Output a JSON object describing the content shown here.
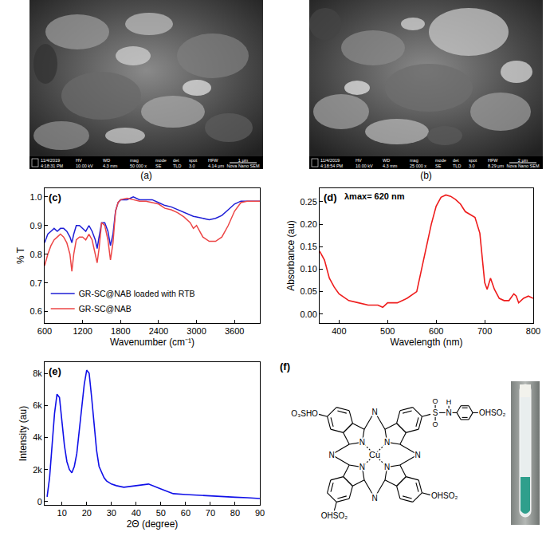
{
  "chart_data": [
    {
      "type": "line",
      "label": "(c)",
      "x_title": "Wavenumber (cm⁻¹)",
      "y_title": "% T",
      "x": [
        600,
        650,
        700,
        750,
        800,
        850,
        900,
        950,
        1000,
        1030,
        1060,
        1100,
        1150,
        1200,
        1250,
        1300,
        1350,
        1400,
        1430,
        1460,
        1500,
        1550,
        1600,
        1640,
        1680,
        1720,
        1760,
        1800,
        1900,
        2000,
        2100,
        2200,
        2300,
        2400,
        2500,
        2600,
        2700,
        2800,
        2900,
        2950,
        3000,
        3050,
        3100,
        3200,
        3300,
        3400,
        3500,
        3600,
        3700,
        3800,
        3900,
        4000
      ],
      "series": [
        {
          "name": "GR-SC@NAB loaded with RTB",
          "color": "#1f1fd6",
          "values": [
            0.84,
            0.87,
            0.88,
            0.89,
            0.88,
            0.89,
            0.89,
            0.88,
            0.86,
            0.84,
            0.87,
            0.9,
            0.9,
            0.89,
            0.88,
            0.9,
            0.88,
            0.85,
            0.82,
            0.86,
            0.91,
            0.91,
            0.88,
            0.83,
            0.87,
            0.95,
            0.98,
            0.99,
            0.99,
            1.0,
            0.99,
            0.99,
            0.99,
            0.98,
            0.97,
            0.965,
            0.955,
            0.945,
            0.935,
            0.932,
            0.93,
            0.927,
            0.925,
            0.92,
            0.925,
            0.935,
            0.955,
            0.975,
            0.985,
            0.985,
            0.985,
            0.985
          ]
        },
        {
          "name": "GR-SC@NAB",
          "color": "#ec4646",
          "values": [
            0.76,
            0.8,
            0.83,
            0.85,
            0.86,
            0.87,
            0.86,
            0.84,
            0.8,
            0.74,
            0.8,
            0.85,
            0.86,
            0.86,
            0.85,
            0.87,
            0.85,
            0.8,
            0.77,
            0.82,
            0.91,
            0.9,
            0.85,
            0.78,
            0.84,
            0.95,
            0.98,
            0.99,
            0.995,
            0.99,
            0.985,
            0.985,
            0.98,
            0.975,
            0.96,
            0.955,
            0.945,
            0.93,
            0.91,
            0.89,
            0.9,
            0.88,
            0.86,
            0.845,
            0.845,
            0.86,
            0.9,
            0.95,
            0.98,
            0.985,
            0.985,
            0.985
          ]
        }
      ],
      "xlim": [
        600,
        4000
      ],
      "xticks": [
        600,
        1200,
        1800,
        2400,
        3000,
        3600
      ],
      "ylim": [
        0.56,
        1.03
      ],
      "yticks": [
        0.6,
        0.7,
        0.8,
        0.9,
        {
          "value": 1,
          "label": "1.0"
        }
      ],
      "legend": "lower left",
      "grid": false
    },
    {
      "type": "line",
      "label": "(d)",
      "x_title": "Wavelength (nm)",
      "y_title": "Absorbance (au)",
      "annotations": [
        "λmax= 620 nm"
      ],
      "x": [
        360,
        370,
        380,
        390,
        400,
        420,
        440,
        460,
        480,
        490,
        500,
        520,
        540,
        560,
        570,
        580,
        590,
        600,
        610,
        620,
        630,
        640,
        650,
        660,
        670,
        680,
        690,
        700,
        705,
        712,
        720,
        730,
        740,
        750,
        760,
        765,
        770,
        780,
        790,
        800
      ],
      "values": [
        0.14,
        0.12,
        0.08,
        0.06,
        0.045,
        0.03,
        0.025,
        0.02,
        0.02,
        0.015,
        0.025,
        0.025,
        0.035,
        0.05,
        0.1,
        0.15,
        0.2,
        0.24,
        0.26,
        0.265,
        0.262,
        0.255,
        0.245,
        0.228,
        0.222,
        0.215,
        0.18,
        0.07,
        0.055,
        0.08,
        0.055,
        0.035,
        0.03,
        0.03,
        0.045,
        0.04,
        0.025,
        0.035,
        0.04,
        0.035
      ],
      "color": "#ee1c1c",
      "xlim": [
        360,
        800
      ],
      "xticks": [
        400,
        500,
        600,
        700,
        800
      ],
      "ylim": [
        -0.02,
        0.28
      ],
      "yticks": [
        {
          "value": 0,
          "label": "0.00"
        },
        {
          "value": 0.05,
          "label": "0.05"
        },
        {
          "value": 0.1,
          "label": "0.10"
        },
        {
          "value": 0.15,
          "label": "0.15"
        },
        {
          "value": 0.2,
          "label": "0.20"
        },
        {
          "value": 0.25,
          "label": "0.25"
        }
      ],
      "grid": false
    },
    {
      "type": "line",
      "label": "(e)",
      "x_title": "2Θ (degree)",
      "y_title": "Intensity (au)",
      "x": [
        4,
        5,
        6,
        7,
        8,
        9,
        10,
        11,
        12,
        13,
        14,
        15,
        16,
        17,
        18,
        19,
        20,
        21,
        22,
        23,
        24,
        25,
        26,
        27,
        28,
        30,
        32,
        35,
        40,
        45,
        50,
        55,
        60,
        65,
        70,
        75,
        80,
        85,
        90
      ],
      "values": [
        300,
        1500,
        3500,
        5500,
        6700,
        6500,
        5000,
        3500,
        2500,
        2000,
        1800,
        2200,
        3000,
        4500,
        6000,
        7300,
        8200,
        8000,
        6500,
        4800,
        3200,
        2200,
        1800,
        1500,
        1300,
        1100,
        1000,
        900,
        1000,
        1100,
        800,
        500,
        450,
        400,
        350,
        300,
        280,
        250,
        200
      ],
      "color": "#1010e8",
      "xlim": [
        3,
        90
      ],
      "xticks": [
        10,
        20,
        30,
        40,
        50,
        60,
        70,
        80,
        90
      ],
      "ylim": [
        -200,
        8700
      ],
      "yticks": [
        0,
        {
          "value": 2000,
          "label": "2k"
        },
        {
          "value": 4000,
          "label": "4k"
        },
        {
          "value": 6000,
          "label": "6k"
        },
        {
          "value": 8000,
          "label": "8k"
        }
      ],
      "grid": false
    }
  ],
  "images": [
    {
      "label": "(a)",
      "date": "11/4/2019",
      "time": "4:18:31 PM",
      "headers": [
        "HV",
        "WD",
        "mag",
        "mode",
        "det",
        "spot",
        "HFW"
      ],
      "values": [
        "10.00 kV",
        "4.3 mm",
        "50 000 x",
        "SE",
        "TLD",
        "3.0",
        "4.14 μm"
      ],
      "scale_bar": "1 μm",
      "instrument": "Nova Nano SEM"
    },
    {
      "label": "(b)",
      "date": "11/4/2019",
      "time": "4:18:54 PM",
      "headers": [
        "HV",
        "WD",
        "mag",
        "mode",
        "det",
        "spot",
        "HFW"
      ],
      "values": [
        "10.00 kV",
        "4.3 mm",
        "25 000 x",
        "SE",
        "TLD",
        "3.0",
        "8.29 μm"
      ],
      "scale_bar": "2 μm",
      "instrument": "Nova Nano SEM"
    }
  ],
  "structure": {
    "label": "(f)",
    "metal": "Cu",
    "ring_nitrogen": "N",
    "substituents": [
      "O₃SHO",
      "OHSO₂",
      "OHSO₂"
    ],
    "sulfonamide": {
      "sulfur": "S",
      "oxygen": "O",
      "nitrogen": "N",
      "hydrogen": "H",
      "end_group": "OHSO₂"
    }
  }
}
